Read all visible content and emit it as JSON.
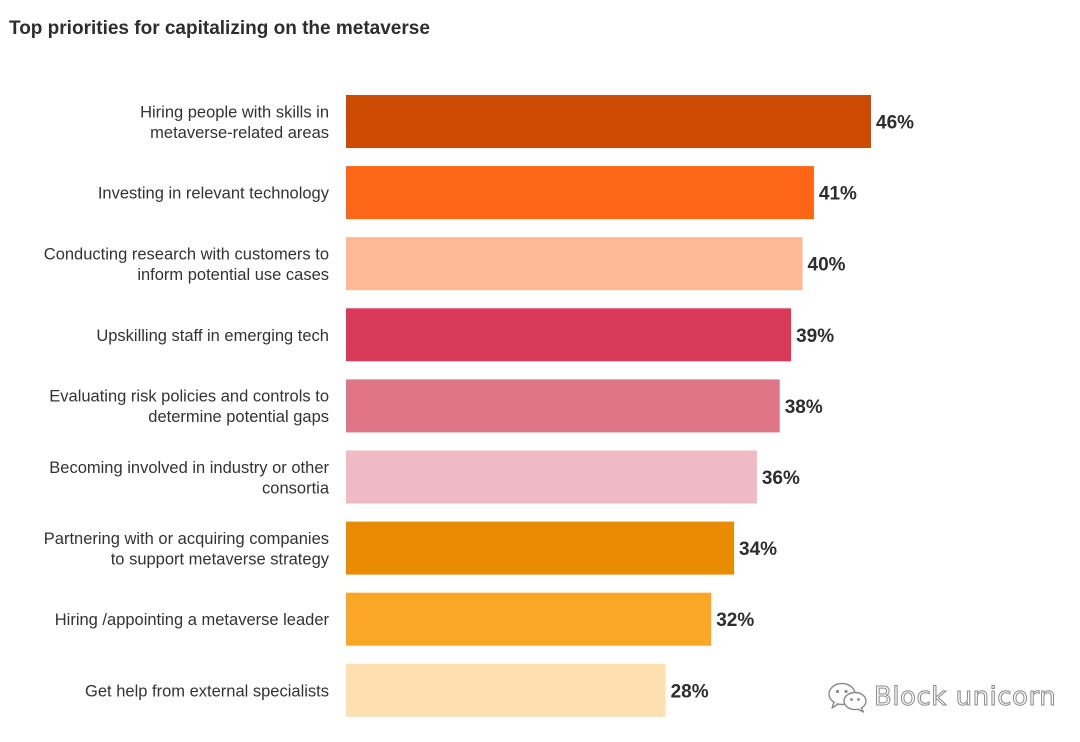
{
  "chart_data": {
    "type": "bar",
    "orientation": "horizontal",
    "title": "Top priorities for capitalizing on the metaverse",
    "xlabel": "",
    "ylabel": "",
    "xlim": [
      0,
      46
    ],
    "grid": false,
    "legend": "none",
    "value_suffix": "%",
    "bars": [
      {
        "label": [
          "Hiring people with skills in",
          "metaverse-related areas"
        ],
        "value": 46,
        "color": "#cd4b02"
      },
      {
        "label": [
          "Investing in relevant technology"
        ],
        "value": 41,
        "color": "#fd6617"
      },
      {
        "label": [
          "Conducting research with customers to",
          "inform potential use cases"
        ],
        "value": 40,
        "color": "#feb896"
      },
      {
        "label": [
          "Upskilling staff in emerging tech"
        ],
        "value": 39,
        "color": "#da3a5a"
      },
      {
        "label": [
          "Evaluating risk policies and controls to",
          "determine potential gaps"
        ],
        "value": 38,
        "color": "#e07587"
      },
      {
        "label": [
          "Becoming involved in industry or other",
          "consortia"
        ],
        "value": 36,
        "color": "#f0bac5"
      },
      {
        "label": [
          "Partnering with or acquiring companies",
          "to support metaverse strategy"
        ],
        "value": 34,
        "color": "#ea8c02"
      },
      {
        "label": [
          "Hiring /appointing a metaverse leader"
        ],
        "value": 32,
        "color": "#faa727"
      },
      {
        "label": [
          "Get help from external specialists"
        ],
        "value": 28,
        "color": "#fedfb0"
      }
    ]
  },
  "watermark": {
    "text": "Block unicorn"
  }
}
